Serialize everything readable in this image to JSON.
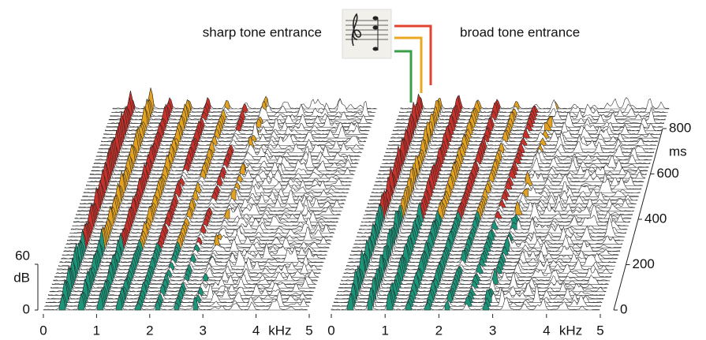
{
  "header": {
    "left_title": "sharp tone entrance",
    "right_title": "broad tone entrance"
  },
  "left_panel": {
    "xticks": [
      0,
      1,
      2,
      3,
      4,
      5
    ],
    "x_unit": "kHz",
    "zticks": [
      0,
      60
    ],
    "z_unit": "dB"
  },
  "right_panel": {
    "xticks": [
      0,
      1,
      2,
      3,
      4,
      5
    ],
    "x_unit": "kHz"
  },
  "time_axis": {
    "ticks": [
      0,
      200,
      400,
      600,
      800
    ],
    "unit": "ms"
  }
}
